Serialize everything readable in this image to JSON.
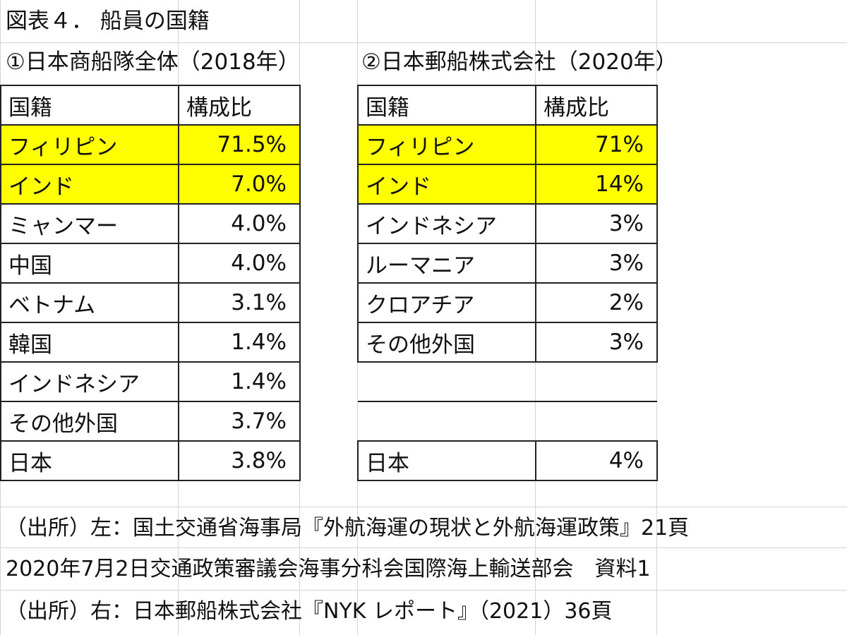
{
  "title": "図表４． 船員の国籍",
  "left_table": {
    "caption": "①日本商船隊全体（2018年）",
    "header": [
      "国籍",
      "構成比"
    ],
    "rows": [
      {
        "country": "フィリピン",
        "share": "71.5%",
        "highlight": true
      },
      {
        "country": "インド",
        "share": "7.0%",
        "highlight": true
      },
      {
        "country": "ミャンマー",
        "share": "4.0%",
        "highlight": false
      },
      {
        "country": "中国",
        "share": "4.0%",
        "highlight": false
      },
      {
        "country": "ベトナム",
        "share": "3.1%",
        "highlight": false
      },
      {
        "country": "韓国",
        "share": "1.4%",
        "highlight": false
      },
      {
        "country": "インドネシア",
        "share": "1.4%",
        "highlight": false
      },
      {
        "country": "その他外国",
        "share": "3.7%",
        "highlight": false
      },
      {
        "country": "日本",
        "share": "3.8%",
        "highlight": false
      }
    ]
  },
  "right_table": {
    "caption": "②日本郵船株式会社（2020年）",
    "header": [
      "国籍",
      "構成比"
    ],
    "rows": [
      {
        "country": "フィリピン",
        "share": "71%",
        "highlight": true
      },
      {
        "country": "インド",
        "share": "14%",
        "highlight": true
      },
      {
        "country": "インドネシア",
        "share": "3%",
        "highlight": false
      },
      {
        "country": "ルーマニア",
        "share": "3%",
        "highlight": false
      },
      {
        "country": "クロアチア",
        "share": "2%",
        "highlight": false
      },
      {
        "country": "その他外国",
        "share": "3%",
        "highlight": false
      },
      {
        "country": "日本",
        "share": "4%",
        "highlight": false
      }
    ]
  },
  "notes": [
    "（出所）左：国土交通省海事局『外航海運の現状と外航海運政策』21頁",
    "2020年7月2日交通政策審議会海事分科会国際海上輸送部会　資料1",
    "（出所）右：日本郵船株式会社『NYK レポート』（2021）36頁"
  ],
  "colors": {
    "highlight": "#ffff00",
    "border": "#222222",
    "gridline": "#d4d4d4"
  }
}
